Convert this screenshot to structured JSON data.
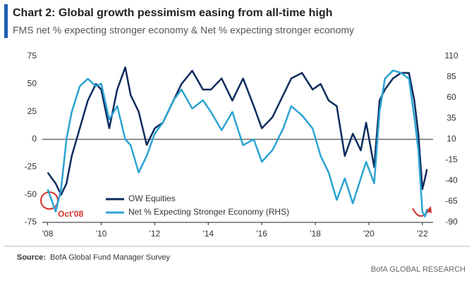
{
  "chart_data": {
    "type": "line",
    "title": "Chart 2: Global growth pessimism easing from all-time high",
    "subtitle": "FMS net % expecting stronger economy & Net % expecting stronger economy",
    "annotation": "Oct'08",
    "source_label": "Source:",
    "source": "BofA Global Fund Manager Survey",
    "brand": "BofA GLOBAL RESEARCH",
    "x": [
      2008.0,
      2008.3,
      2008.5,
      2008.7,
      2008.9,
      2009.2,
      2009.5,
      2009.8,
      2010.0,
      2010.3,
      2010.6,
      2010.9,
      2011.1,
      2011.4,
      2011.7,
      2012.0,
      2012.3,
      2012.7,
      2013.0,
      2013.4,
      2013.8,
      2014.1,
      2014.5,
      2014.9,
      2015.3,
      2015.7,
      2016.0,
      2016.4,
      2016.8,
      2017.1,
      2017.5,
      2017.9,
      2018.2,
      2018.5,
      2018.8,
      2019.1,
      2019.4,
      2019.7,
      2019.9,
      2020.2,
      2020.4,
      2020.6,
      2020.9,
      2021.2,
      2021.5,
      2021.7,
      2021.85,
      2022.0,
      2022.1,
      2022.17
    ],
    "series": [
      {
        "name": "OW Equities",
        "color": "#0d2b5e",
        "axis": "y",
        "values": [
          -30,
          -40,
          -50,
          -40,
          -15,
          10,
          35,
          50,
          45,
          10,
          45,
          65,
          40,
          25,
          -5,
          10,
          15,
          35,
          50,
          62,
          45,
          45,
          55,
          35,
          55,
          30,
          10,
          20,
          40,
          55,
          60,
          45,
          50,
          35,
          30,
          -15,
          5,
          -10,
          15,
          -25,
          35,
          45,
          55,
          60,
          60,
          35,
          5,
          -45,
          -35,
          -27
        ]
      },
      {
        "name": "Net % Expecting Stronger Economy (RHS)",
        "color": "#2ba3d3",
        "axis": "y2",
        "values": [
          -50,
          -77,
          -50,
          10,
          43,
          74,
          83,
          74,
          77,
          34,
          50,
          10,
          3,
          -30,
          -10,
          17,
          30,
          57,
          70,
          47,
          57,
          43,
          21,
          43,
          3,
          10,
          -17,
          -3,
          23,
          50,
          39,
          23,
          -10,
          -30,
          -63,
          -37,
          -67,
          -37,
          -17,
          -43,
          43,
          83,
          93,
          90,
          83,
          37,
          -3,
          -77,
          -83,
          -74
        ]
      }
    ],
    "xlim": [
      2007.8,
      2022.4
    ],
    "xticks": [
      {
        "value": 2008,
        "label": "'08"
      },
      {
        "value": 2010,
        "label": "'10"
      },
      {
        "value": 2012,
        "label": "'12"
      },
      {
        "value": 2014,
        "label": "'14"
      },
      {
        "value": 2016,
        "label": "'16"
      },
      {
        "value": 2018,
        "label": "'18"
      },
      {
        "value": 2020,
        "label": "'20"
      },
      {
        "value": 2022,
        "label": "'22"
      }
    ],
    "ylim": [
      -75,
      75
    ],
    "yticks": [
      -75,
      -50,
      -25,
      0,
      25,
      50,
      75
    ],
    "y2lim": [
      -90,
      110
    ],
    "y2ticks": [
      -90,
      -65,
      -40,
      -15,
      10,
      35,
      60,
      85,
      110
    ]
  }
}
